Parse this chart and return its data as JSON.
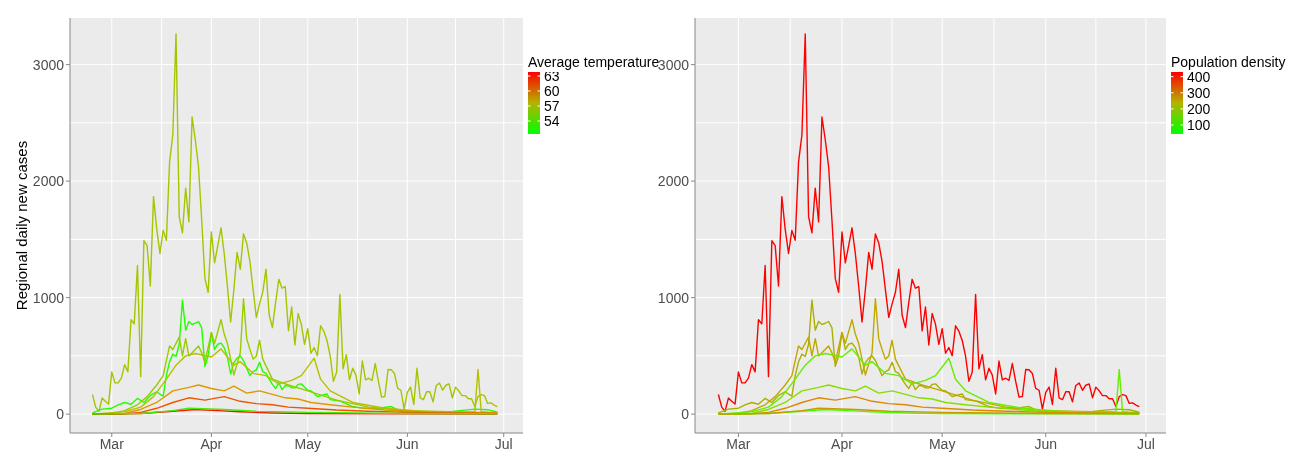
{
  "chart_data": [
    {
      "type": "line",
      "ylabel": "Regional daily new cases",
      "clabel": "Average temperature",
      "clim": [
        51.4,
        63.8
      ],
      "cticks": [
        54,
        57,
        60,
        63
      ],
      "grid": true,
      "xlim": [
        "--02-17",
        "--07-07"
      ],
      "xticks": [
        {
          "value": "--03-01",
          "label": "Mar"
        },
        {
          "value": "--04-01",
          "label": "Apr"
        },
        {
          "value": "--05-01",
          "label": "May"
        },
        {
          "value": "--06-01",
          "label": "Jun"
        },
        {
          "value": "--07-01",
          "label": "Jul"
        }
      ],
      "ylim": [
        -162,
        3400
      ],
      "yticks": [
        0,
        1000,
        2000,
        3000
      ],
      "series": [
        {
          "color": "#a6c400",
          "x": [
            "--02-24",
            "--02-25",
            "--02-26",
            "--02-27",
            "--02-28",
            "--02-29",
            "--03-01",
            "--03-02",
            "--03-03",
            "--03-04",
            "--03-05",
            "--03-06",
            "--03-07",
            "--03-08",
            "--03-09",
            "--03-10",
            "--03-11",
            "--03-12",
            "--03-13",
            "--03-14",
            "--03-15",
            "--03-16",
            "--03-17",
            "--03-18",
            "--03-19",
            "--03-20",
            "--03-21",
            "--03-22",
            "--03-23",
            "--03-24",
            "--03-25",
            "--03-26",
            "--03-27",
            "--03-28",
            "--03-29",
            "--03-30",
            "--03-31",
            "--04-01",
            "--04-02",
            "--04-03",
            "--04-04",
            "--04-05",
            "--04-06",
            "--04-07",
            "--04-08",
            "--04-09",
            "--04-10",
            "--04-11",
            "--04-12",
            "--04-13",
            "--04-14",
            "--04-15",
            "--04-16",
            "--04-17",
            "--04-18",
            "--04-19",
            "--04-20",
            "--04-21",
            "--04-22",
            "--04-23",
            "--04-24",
            "--04-25",
            "--04-26",
            "--04-27",
            "--04-28",
            "--04-29",
            "--04-30",
            "--05-01",
            "--05-02",
            "--05-03",
            "--05-04",
            "--05-05",
            "--05-06",
            "--05-07",
            "--05-08",
            "--05-09",
            "--05-10",
            "--05-11",
            "--05-12",
            "--05-13",
            "--05-14",
            "--05-15",
            "--05-16",
            "--05-17",
            "--05-18",
            "--05-19",
            "--05-20",
            "--05-21",
            "--05-22",
            "--05-23",
            "--05-24",
            "--05-25",
            "--05-26",
            "--05-27",
            "--05-28",
            "--05-29",
            "--05-30",
            "--05-31",
            "--06-01",
            "--06-02",
            "--06-03",
            "--06-04",
            "--06-05",
            "--06-06",
            "--06-07",
            "--06-08",
            "--06-09",
            "--06-10",
            "--06-11",
            "--06-12",
            "--06-13",
            "--06-14",
            "--06-15",
            "--06-16",
            "--06-17",
            "--06-18",
            "--06-19",
            "--06-20",
            "--06-21",
            "--06-22",
            "--06-23",
            "--06-24",
            "--06-25",
            "--06-26",
            "--06-27",
            "--06-28",
            "--06-29"
          ],
          "values": [
            168,
            60,
            24,
            138,
            110,
            87,
            363,
            268,
            268,
            309,
            425,
            363,
            810,
            775,
            1276,
            322,
            1488,
            1447,
            1100,
            1867,
            1588,
            1379,
            1577,
            1493,
            2165,
            2396,
            3263,
            1696,
            1556,
            1940,
            1650,
            2550,
            2355,
            2125,
            1664,
            1163,
            1046,
            1564,
            1298,
            1447,
            1599,
            1379,
            1095,
            791,
            1068,
            1388,
            1244,
            1547,
            1469,
            1312,
            1068,
            829,
            946,
            1046,
            1244,
            851,
            743,
            959,
            1157,
            1081,
            1095,
            715,
            919,
            593,
            864,
            770,
            599,
            733,
            523,
            572,
            502,
            758,
            712,
            632,
            497,
            281,
            362,
            1028,
            389,
            510,
            294,
            394,
            335,
            173,
            456,
            294,
            308,
            289,
            434,
            281,
            146,
            151,
            383,
            381,
            348,
            221,
            205,
            43,
            186,
            232,
            84,
            394,
            140,
            124,
            192,
            192,
            105,
            246,
            267,
            205,
            248,
            259,
            140,
            232,
            200,
            159,
            159,
            132,
            132,
            65,
            150,
            167,
            159,
            92,
            97,
            78,
            65
          ]
        },
        {
          "color": "#22ff00",
          "x": [
            "--02-24",
            "--02-27",
            "--03-01",
            "--03-03",
            "--03-05",
            "--03-07",
            "--03-09",
            "--03-11",
            "--03-13",
            "--03-15",
            "--03-17",
            "--03-18",
            "--03-19",
            "--03-20",
            "--03-21",
            "--03-22",
            "--03-23",
            "--03-24",
            "--03-25",
            "--03-26",
            "--03-27",
            "--03-28",
            "--03-29",
            "--03-30",
            "--03-31",
            "--04-01",
            "--04-02",
            "--04-03",
            "--04-04",
            "--04-05",
            "--04-06",
            "--04-07",
            "--04-08",
            "--04-09",
            "--04-10",
            "--04-11",
            "--04-12",
            "--04-13",
            "--04-14",
            "--04-15",
            "--04-16",
            "--04-17",
            "--04-18",
            "--04-19",
            "--04-20",
            "--04-21",
            "--04-22",
            "--04-23",
            "--04-24",
            "--04-25",
            "--04-26",
            "--04-27",
            "--04-28",
            "--04-29",
            "--04-30",
            "--05-01",
            "--05-02",
            "--05-04",
            "--05-07",
            "--05-08",
            "--05-11",
            "--05-15",
            "--05-18",
            "--05-23",
            "--05-27",
            "--05-30",
            "--06-08",
            "--06-15",
            "--06-22",
            "--06-26",
            "--06-29"
          ],
          "values": [
            10,
            43,
            51,
            79,
            100,
            85,
            135,
            100,
            160,
            190,
            155,
            330,
            450,
            515,
            495,
            600,
            978,
            720,
            795,
            770,
            780,
            795,
            740,
            410,
            500,
            700,
            555,
            600,
            610,
            570,
            490,
            345,
            440,
            480,
            500,
            460,
            395,
            330,
            365,
            380,
            445,
            365,
            350,
            300,
            255,
            220,
            270,
            210,
            244,
            245,
            225,
            225,
            255,
            260,
            230,
            205,
            200,
            151,
            173,
            124,
            113,
            65,
            51,
            51,
            65,
            24,
            16,
            24,
            43,
            38,
            16
          ]
        },
        {
          "color": "#99cc00",
          "x": [
            "--02-24",
            "--03-01",
            "--03-05",
            "--03-09",
            "--03-12",
            "--03-15",
            "--03-17",
            "--03-19",
            "--03-20",
            "--03-22",
            "--03-23",
            "--03-24",
            "--03-25",
            "--03-26",
            "--03-28",
            "--03-29",
            "--03-30",
            "--04-01",
            "--04-02",
            "--04-04",
            "--04-05",
            "--04-06",
            "--04-08",
            "--04-10",
            "--04-11",
            "--04-12",
            "--04-13",
            "--04-14",
            "--04-15",
            "--04-16",
            "--04-17",
            "--04-20",
            "--04-25",
            "--05-01",
            "--05-10",
            "--05-20",
            "--06-01",
            "--06-15",
            "--06-29"
          ],
          "values": [
            0,
            5,
            30,
            80,
            150,
            250,
            330,
            585,
            555,
            661,
            499,
            648,
            499,
            526,
            585,
            526,
            444,
            702,
            607,
            810,
            688,
            607,
            336,
            526,
            990,
            648,
            555,
            472,
            499,
            634,
            472,
            300,
            250,
            200,
            120,
            60,
            30,
            20,
            10
          ]
        },
        {
          "color": "#b5c000",
          "x": [
            "--02-24",
            "--03-05",
            "--03-10",
            "--03-14",
            "--03-18",
            "--03-21",
            "--03-24",
            "--03-27",
            "--04-01",
            "--04-04",
            "--04-08",
            "--04-10",
            "--04-14",
            "--04-18",
            "--04-22",
            "--04-26",
            "--04-29",
            "--05-03",
            "--05-05",
            "--05-08",
            "--05-15",
            "--05-25",
            "--06-05",
            "--06-15",
            "--06-22",
            "--06-23",
            "--06-24",
            "--06-29"
          ],
          "values": [
            0,
            20,
            60,
            150,
            300,
            420,
            500,
            520,
            490,
            560,
            420,
            450,
            350,
            330,
            260,
            290,
            330,
            480,
            300,
            200,
            100,
            50,
            25,
            15,
            20,
            383,
            20,
            10
          ]
        },
        {
          "color": "#dd9900",
          "x": [
            "--02-24",
            "--03-05",
            "--03-10",
            "--03-15",
            "--03-20",
            "--03-25",
            "--03-28",
            "--04-01",
            "--04-05",
            "--04-08",
            "--04-12",
            "--04-16",
            "--04-20",
            "--04-24",
            "--04-28",
            "--05-02",
            "--05-08",
            "--05-15",
            "--05-25",
            "--06-05",
            "--06-15",
            "--06-29"
          ],
          "values": [
            0,
            5,
            40,
            100,
            200,
            230,
            250,
            220,
            200,
            240,
            180,
            200,
            170,
            140,
            130,
            100,
            80,
            60,
            35,
            20,
            15,
            10
          ]
        },
        {
          "color": "#ee5500",
          "x": [
            "--02-24",
            "--03-05",
            "--03-10",
            "--03-15",
            "--03-20",
            "--03-25",
            "--03-30",
            "--04-05",
            "--04-10",
            "--04-15",
            "--04-20",
            "--04-25",
            "--05-01",
            "--05-10",
            "--05-20",
            "--06-01",
            "--06-15",
            "--06-29"
          ],
          "values": [
            0,
            2,
            15,
            50,
            100,
            140,
            120,
            150,
            110,
            90,
            80,
            60,
            50,
            35,
            25,
            15,
            10,
            5
          ]
        },
        {
          "color": "#ff1100",
          "x": [
            "--02-24",
            "--03-10",
            "--03-20",
            "--03-27",
            "--04-03",
            "--04-10",
            "--04-20",
            "--05-01",
            "--06-01",
            "--06-29"
          ],
          "values": [
            0,
            5,
            25,
            40,
            30,
            20,
            10,
            5,
            2,
            1
          ]
        },
        {
          "color": "#44ee00",
          "x": [
            "--02-24",
            "--03-10",
            "--03-20",
            "--03-25",
            "--04-05",
            "--04-15",
            "--05-01",
            "--06-01",
            "--06-29"
          ],
          "values": [
            0,
            5,
            30,
            50,
            40,
            25,
            15,
            5,
            3
          ]
        }
      ]
    },
    {
      "type": "line",
      "clabel": "Population density",
      "clim": [
        44,
        429
      ],
      "cticks": [
        100,
        200,
        300,
        400
      ],
      "grid": true,
      "xlim": [
        "--02-17",
        "--07-07"
      ],
      "xticks": [
        {
          "value": "--03-01",
          "label": "Mar"
        },
        {
          "value": "--04-01",
          "label": "Apr"
        },
        {
          "value": "--05-01",
          "label": "May"
        },
        {
          "value": "--06-01",
          "label": "Jun"
        },
        {
          "value": "--07-01",
          "label": "Jul"
        }
      ],
      "ylim": [
        -162,
        3400
      ],
      "yticks": [
        0,
        1000,
        2000,
        3000
      ],
      "series": [
        {
          "color": "#ff0000",
          "x": [
            "--02-24",
            "--02-25",
            "--02-26",
            "--02-27",
            "--02-28",
            "--02-29",
            "--03-01",
            "--03-02",
            "--03-03",
            "--03-04",
            "--03-05",
            "--03-06",
            "--03-07",
            "--03-08",
            "--03-09",
            "--03-10",
            "--03-11",
            "--03-12",
            "--03-13",
            "--03-14",
            "--03-15",
            "--03-16",
            "--03-17",
            "--03-18",
            "--03-19",
            "--03-20",
            "--03-21",
            "--03-22",
            "--03-23",
            "--03-24",
            "--03-25",
            "--03-26",
            "--03-27",
            "--03-28",
            "--03-29",
            "--03-30",
            "--03-31",
            "--04-01",
            "--04-02",
            "--04-03",
            "--04-04",
            "--04-05",
            "--04-06",
            "--04-07",
            "--04-08",
            "--04-09",
            "--04-10",
            "--04-11",
            "--04-12",
            "--04-13",
            "--04-14",
            "--04-15",
            "--04-16",
            "--04-17",
            "--04-18",
            "--04-19",
            "--04-20",
            "--04-21",
            "--04-22",
            "--04-23",
            "--04-24",
            "--04-25",
            "--04-26",
            "--04-27",
            "--04-28",
            "--04-29",
            "--04-30",
            "--05-01",
            "--05-02",
            "--05-03",
            "--05-04",
            "--05-05",
            "--05-06",
            "--05-07",
            "--05-08",
            "--05-09",
            "--05-10",
            "--05-11",
            "--05-12",
            "--05-13",
            "--05-14",
            "--05-15",
            "--05-16",
            "--05-17",
            "--05-18",
            "--05-19",
            "--05-20",
            "--05-21",
            "--05-22",
            "--05-23",
            "--05-24",
            "--05-25",
            "--05-26",
            "--05-27",
            "--05-28",
            "--05-29",
            "--05-30",
            "--05-31",
            "--06-01",
            "--06-02",
            "--06-03",
            "--06-04",
            "--06-05",
            "--06-06",
            "--06-07",
            "--06-08",
            "--06-09",
            "--06-10",
            "--06-11",
            "--06-12",
            "--06-13",
            "--06-14",
            "--06-15",
            "--06-16",
            "--06-17",
            "--06-18",
            "--06-19",
            "--06-20",
            "--06-21",
            "--06-22",
            "--06-23",
            "--06-24",
            "--06-25",
            "--06-26",
            "--06-27",
            "--06-28",
            "--06-29"
          ],
          "values": [
            168,
            60,
            24,
            138,
            110,
            87,
            363,
            268,
            268,
            309,
            425,
            363,
            810,
            775,
            1276,
            322,
            1488,
            1447,
            1100,
            1867,
            1588,
            1379,
            1577,
            1493,
            2165,
            2396,
            3263,
            1696,
            1556,
            1940,
            1650,
            2550,
            2355,
            2125,
            1664,
            1163,
            1046,
            1564,
            1298,
            1447,
            1599,
            1379,
            1095,
            791,
            1068,
            1388,
            1244,
            1547,
            1469,
            1312,
            1068,
            829,
            946,
            1046,
            1244,
            851,
            743,
            959,
            1157,
            1081,
            1095,
            715,
            919,
            593,
            864,
            770,
            599,
            733,
            523,
            572,
            502,
            758,
            712,
            632,
            497,
            281,
            362,
            1028,
            389,
            510,
            294,
            394,
            335,
            173,
            456,
            294,
            308,
            289,
            434,
            281,
            146,
            151,
            383,
            381,
            348,
            221,
            205,
            43,
            186,
            232,
            84,
            394,
            140,
            124,
            192,
            192,
            105,
            246,
            267,
            205,
            248,
            259,
            140,
            232,
            200,
            159,
            159,
            132,
            132,
            65,
            150,
            167,
            159,
            92,
            97,
            78,
            65
          ]
        },
        {
          "color": "#aab000",
          "x": [
            "--02-24",
            "--02-27",
            "--03-01",
            "--03-03",
            "--03-05",
            "--03-07",
            "--03-09",
            "--03-11",
            "--03-13",
            "--03-15",
            "--03-17",
            "--03-18",
            "--03-19",
            "--03-20",
            "--03-21",
            "--03-22",
            "--03-23",
            "--03-24",
            "--03-25",
            "--03-26",
            "--03-27",
            "--03-28",
            "--03-29",
            "--03-30",
            "--03-31",
            "--04-01",
            "--04-02",
            "--04-03",
            "--04-04",
            "--04-05",
            "--04-06",
            "--04-07",
            "--04-08",
            "--04-09",
            "--04-10",
            "--04-11",
            "--04-12",
            "--04-13",
            "--04-14",
            "--04-15",
            "--04-16",
            "--04-17",
            "--04-18",
            "--04-19",
            "--04-20",
            "--04-21",
            "--04-22",
            "--04-23",
            "--04-24",
            "--04-25",
            "--04-26",
            "--04-27",
            "--04-28",
            "--04-29",
            "--04-30",
            "--05-01",
            "--05-02",
            "--05-04",
            "--05-07",
            "--05-08",
            "--05-11",
            "--05-15",
            "--05-18",
            "--05-23",
            "--05-27",
            "--05-30",
            "--06-08",
            "--06-15",
            "--06-22",
            "--06-26",
            "--06-29"
          ],
          "values": [
            10,
            43,
            51,
            79,
            100,
            85,
            135,
            100,
            160,
            190,
            155,
            330,
            450,
            515,
            495,
            600,
            978,
            720,
            795,
            770,
            780,
            795,
            740,
            410,
            500,
            700,
            555,
            600,
            610,
            570,
            490,
            345,
            440,
            480,
            500,
            460,
            395,
            330,
            365,
            380,
            445,
            365,
            350,
            300,
            255,
            220,
            270,
            210,
            244,
            245,
            225,
            225,
            255,
            260,
            230,
            205,
            200,
            151,
            173,
            124,
            113,
            65,
            51,
            51,
            65,
            24,
            16,
            24,
            43,
            38,
            16
          ]
        },
        {
          "color": "#c0a800",
          "x": [
            "--02-24",
            "--03-01",
            "--03-05",
            "--03-09",
            "--03-12",
            "--03-15",
            "--03-17",
            "--03-19",
            "--03-20",
            "--03-22",
            "--03-23",
            "--03-24",
            "--03-25",
            "--03-26",
            "--03-28",
            "--03-29",
            "--03-30",
            "--04-01",
            "--04-02",
            "--04-04",
            "--04-05",
            "--04-06",
            "--04-08",
            "--04-10",
            "--04-11",
            "--04-12",
            "--04-13",
            "--04-14",
            "--04-15",
            "--04-16",
            "--04-17",
            "--04-20",
            "--04-25",
            "--05-01",
            "--05-10",
            "--05-20",
            "--06-01",
            "--06-15",
            "--06-29"
          ],
          "values": [
            0,
            5,
            30,
            80,
            150,
            250,
            330,
            585,
            555,
            661,
            499,
            648,
            499,
            526,
            585,
            526,
            444,
            702,
            607,
            810,
            688,
            607,
            336,
            526,
            990,
            648,
            555,
            472,
            499,
            634,
            472,
            300,
            250,
            200,
            120,
            60,
            30,
            20,
            10
          ]
        },
        {
          "color": "#66ee00",
          "x": [
            "--02-24",
            "--03-05",
            "--03-10",
            "--03-14",
            "--03-18",
            "--03-21",
            "--03-24",
            "--03-27",
            "--04-01",
            "--04-04",
            "--04-08",
            "--04-10",
            "--04-14",
            "--04-18",
            "--04-22",
            "--04-26",
            "--04-29",
            "--05-03",
            "--05-05",
            "--05-08",
            "--05-15",
            "--05-25",
            "--06-05",
            "--06-15",
            "--06-22",
            "--06-23",
            "--06-24",
            "--06-29"
          ],
          "values": [
            0,
            20,
            60,
            150,
            300,
            420,
            500,
            520,
            490,
            560,
            420,
            450,
            350,
            330,
            260,
            290,
            330,
            480,
            300,
            200,
            100,
            50,
            25,
            15,
            20,
            383,
            20,
            10
          ]
        },
        {
          "color": "#88dd00",
          "x": [
            "--02-24",
            "--03-05",
            "--03-10",
            "--03-15",
            "--03-20",
            "--03-25",
            "--03-28",
            "--04-01",
            "--04-05",
            "--04-08",
            "--04-12",
            "--04-16",
            "--04-20",
            "--04-24",
            "--04-28",
            "--05-02",
            "--05-08",
            "--05-15",
            "--05-25",
            "--06-05",
            "--06-15",
            "--06-29"
          ],
          "values": [
            0,
            5,
            40,
            100,
            200,
            230,
            250,
            220,
            200,
            240,
            180,
            200,
            170,
            140,
            130,
            100,
            80,
            60,
            35,
            20,
            15,
            10
          ]
        },
        {
          "color": "#dd8800",
          "x": [
            "--02-24",
            "--03-05",
            "--03-10",
            "--03-15",
            "--03-20",
            "--03-25",
            "--03-30",
            "--04-05",
            "--04-10",
            "--04-15",
            "--04-20",
            "--04-25",
            "--05-01",
            "--05-10",
            "--05-20",
            "--06-01",
            "--06-15",
            "--06-29"
          ],
          "values": [
            0,
            2,
            15,
            50,
            100,
            140,
            120,
            150,
            110,
            90,
            80,
            60,
            50,
            35,
            25,
            15,
            10,
            5
          ]
        },
        {
          "color": "#44ff00",
          "x": [
            "--02-24",
            "--03-10",
            "--03-20",
            "--03-27",
            "--04-03",
            "--04-10",
            "--04-20",
            "--05-01",
            "--06-01",
            "--06-29"
          ],
          "values": [
            0,
            5,
            25,
            40,
            30,
            20,
            10,
            5,
            2,
            1
          ]
        },
        {
          "color": "#cc9900",
          "x": [
            "--02-24",
            "--03-10",
            "--03-20",
            "--03-25",
            "--04-05",
            "--04-15",
            "--05-01",
            "--06-01",
            "--06-29"
          ],
          "values": [
            0,
            5,
            30,
            50,
            40,
            25,
            15,
            5,
            3
          ]
        }
      ]
    }
  ]
}
